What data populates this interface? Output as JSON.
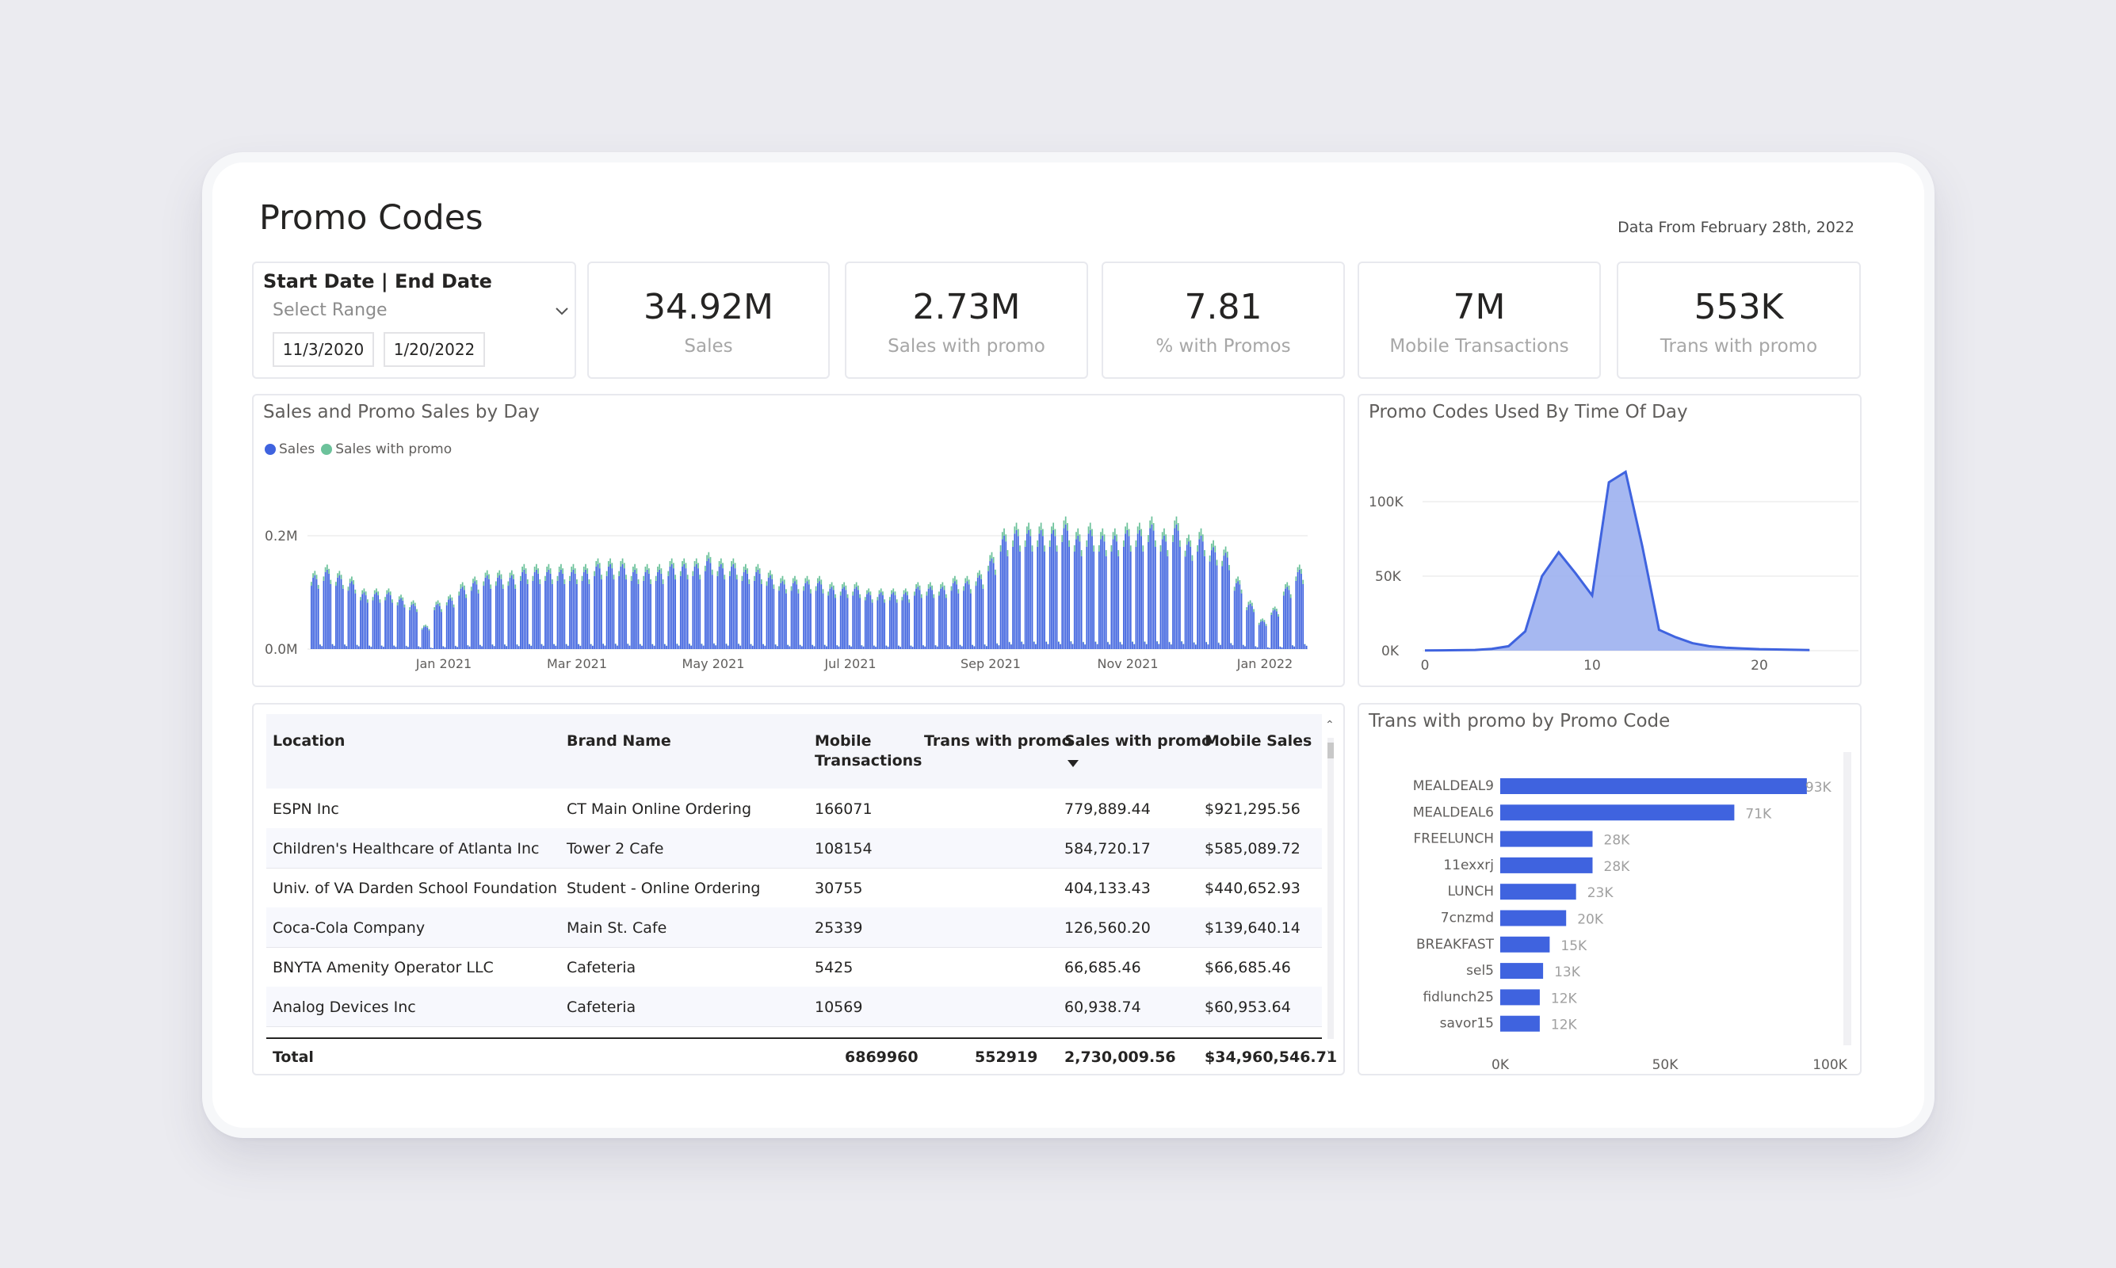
{
  "page": {
    "title": "Promo Codes",
    "data_from": "Data From February 28th, 2022"
  },
  "slicer": {
    "title": "Start Date | End Date",
    "placeholder": "Select Range",
    "start_date": "11/3/2020",
    "end_date": "1/20/2022"
  },
  "kpis": [
    {
      "value": "34.92M",
      "label": "Sales"
    },
    {
      "value": "2.73M",
      "label": "Sales with promo"
    },
    {
      "value": "7.81",
      "label": "% with Promos"
    },
    {
      "value": "7M",
      "label": "Mobile Transactions"
    },
    {
      "value": "553K",
      "label": "Trans with promo"
    }
  ],
  "colors": {
    "accent": "#3f63df",
    "promo": "#6cc29b",
    "area_fill": "#9cb0ef"
  },
  "daily_chart": {
    "title": "Sales and Promo Sales by Day",
    "legend": [
      "Sales",
      "Sales with promo"
    ],
    "y_ticks": [
      "0.2M",
      "0.0M"
    ],
    "x_ticks": [
      "Jan 2021",
      "Mar 2021",
      "May 2021",
      "Jul 2021",
      "Sep 2021",
      "Nov 2021",
      "Jan 2022"
    ]
  },
  "time_chart": {
    "title": "Promo Codes Used By Time Of Day",
    "y_ticks": [
      "100K",
      "50K",
      "0K"
    ],
    "x_ticks": [
      "0",
      "10",
      "20"
    ]
  },
  "promo_chart": {
    "title": "Trans with promo by Promo Code",
    "x_ticks": [
      "0K",
      "50K",
      "100K"
    ],
    "data_labels": [
      "93K",
      "71K",
      "28K",
      "28K",
      "23K",
      "20K",
      "15K",
      "13K",
      "12K",
      "12K"
    ]
  },
  "table": {
    "headers": {
      "location": "Location",
      "brand": "Brand Name",
      "mobile_tx": "Mobile Transactions",
      "trans_promo": "Trans with promo",
      "sales_promo": "Sales with promo",
      "mobile_sales": "Mobile Sales"
    },
    "rows": [
      {
        "location": "ESPN Inc",
        "brand": "CT Main Online Ordering",
        "mobile_tx": "166071",
        "sales_promo": "779,889.44",
        "mobile_sales": "$921,295.56"
      },
      {
        "location": "Children's Healthcare of Atlanta Inc",
        "brand": "Tower 2 Cafe",
        "mobile_tx": "108154",
        "sales_promo": "584,720.17",
        "mobile_sales": "$585,089.72"
      },
      {
        "location": "Univ. of VA Darden School Foundation",
        "brand": "Student - Online Ordering",
        "mobile_tx": "30755",
        "sales_promo": "404,133.43",
        "mobile_sales": "$440,652.93"
      },
      {
        "location": "Coca-Cola Company",
        "brand": "Main St. Cafe",
        "mobile_tx": "25339",
        "sales_promo": "126,560.20",
        "mobile_sales": "$139,640.14"
      },
      {
        "location": "BNYTA Amenity Operator LLC",
        "brand": "Cafeteria",
        "mobile_tx": "5425",
        "sales_promo": "66,685.46",
        "mobile_sales": "$66,685.46"
      },
      {
        "location": "Analog Devices Inc",
        "brand": "Cafeteria",
        "mobile_tx": "10569",
        "sales_promo": "60,938.74",
        "mobile_sales": "$60,953.64"
      }
    ],
    "total": {
      "label": "Total",
      "mobile_tx": "6869960",
      "trans_promo": "552919",
      "sales_promo": "2,730,009.56",
      "mobile_sales": "$34,960,546.71"
    }
  },
  "chart_data": [
    {
      "type": "bar",
      "title": "Sales and Promo Sales by Day",
      "stacked": true,
      "xlabel": "",
      "ylabel": "",
      "ylim": [
        0,
        0.25
      ],
      "x_range": [
        "2020-11-03",
        "2022-01-20"
      ],
      "y_unit": "M",
      "series": [
        {
          "name": "Sales",
          "color": "#3f63df",
          "weekly_peak_values": [
            0.13,
            0.14,
            0.13,
            0.12,
            0.1,
            0.1,
            0.1,
            0.09,
            0.08,
            0.04,
            0.08,
            0.09,
            0.11,
            0.12,
            0.13,
            0.13,
            0.13,
            0.14,
            0.14,
            0.14,
            0.14,
            0.14,
            0.14,
            0.15,
            0.15,
            0.15,
            0.14,
            0.14,
            0.14,
            0.15,
            0.15,
            0.15,
            0.16,
            0.15,
            0.15,
            0.14,
            0.14,
            0.13,
            0.12,
            0.12,
            0.12,
            0.12,
            0.11,
            0.11,
            0.11,
            0.1,
            0.1,
            0.1,
            0.1,
            0.11,
            0.11,
            0.11,
            0.12,
            0.12,
            0.13,
            0.16,
            0.2,
            0.21,
            0.21,
            0.21,
            0.21,
            0.22,
            0.2,
            0.21,
            0.2,
            0.2,
            0.21,
            0.21,
            0.22,
            0.2,
            0.22,
            0.19,
            0.2,
            0.18,
            0.17,
            0.12,
            0.08,
            0.05,
            0.07,
            0.11,
            0.14
          ]
        },
        {
          "name": "Sales with promo",
          "color": "#6cc29b",
          "weekly_peak_values": [
            0.008,
            0.009,
            0.008,
            0.008,
            0.007,
            0.007,
            0.007,
            0.006,
            0.006,
            0.003,
            0.006,
            0.006,
            0.008,
            0.008,
            0.009,
            0.009,
            0.009,
            0.01,
            0.01,
            0.01,
            0.01,
            0.01,
            0.01,
            0.01,
            0.01,
            0.01,
            0.01,
            0.01,
            0.01,
            0.01,
            0.01,
            0.01,
            0.011,
            0.01,
            0.01,
            0.01,
            0.01,
            0.009,
            0.009,
            0.009,
            0.009,
            0.009,
            0.008,
            0.008,
            0.008,
            0.007,
            0.007,
            0.007,
            0.007,
            0.008,
            0.008,
            0.008,
            0.009,
            0.009,
            0.009,
            0.011,
            0.013,
            0.013,
            0.013,
            0.013,
            0.013,
            0.014,
            0.013,
            0.013,
            0.013,
            0.013,
            0.013,
            0.013,
            0.014,
            0.013,
            0.014,
            0.012,
            0.013,
            0.012,
            0.011,
            0.008,
            0.006,
            0.004,
            0.005,
            0.008,
            0.009
          ]
        }
      ]
    },
    {
      "type": "area",
      "title": "Promo Codes Used By Time Of Day",
      "xlabel": "",
      "ylabel": "",
      "ylim": [
        0,
        120000
      ],
      "x": [
        0,
        1,
        2,
        3,
        4,
        5,
        6,
        7,
        8,
        9,
        10,
        11,
        12,
        13,
        14,
        15,
        16,
        17,
        18,
        19,
        20,
        21,
        22,
        23
      ],
      "values": [
        100,
        200,
        300,
        500,
        1200,
        3000,
        13000,
        50000,
        66000,
        52000,
        37000,
        113000,
        120000,
        70000,
        14000,
        9000,
        5000,
        3000,
        2000,
        1500,
        1000,
        800,
        600,
        400
      ]
    },
    {
      "type": "bar",
      "orientation": "horizontal",
      "title": "Trans with promo by Promo Code",
      "xlabel": "",
      "ylabel": "",
      "xlim": [
        0,
        100000
      ],
      "categories": [
        "MEALDEAL9",
        "MEALDEAL6",
        "FREELUNCH",
        "11exxrj",
        "LUNCH",
        "7cnzmd",
        "BREAKFAST",
        "sel5",
        "fidlunch25",
        "savor15"
      ],
      "values": [
        93000,
        71000,
        28000,
        28000,
        23000,
        20000,
        15000,
        13000,
        12000,
        12000
      ]
    }
  ]
}
